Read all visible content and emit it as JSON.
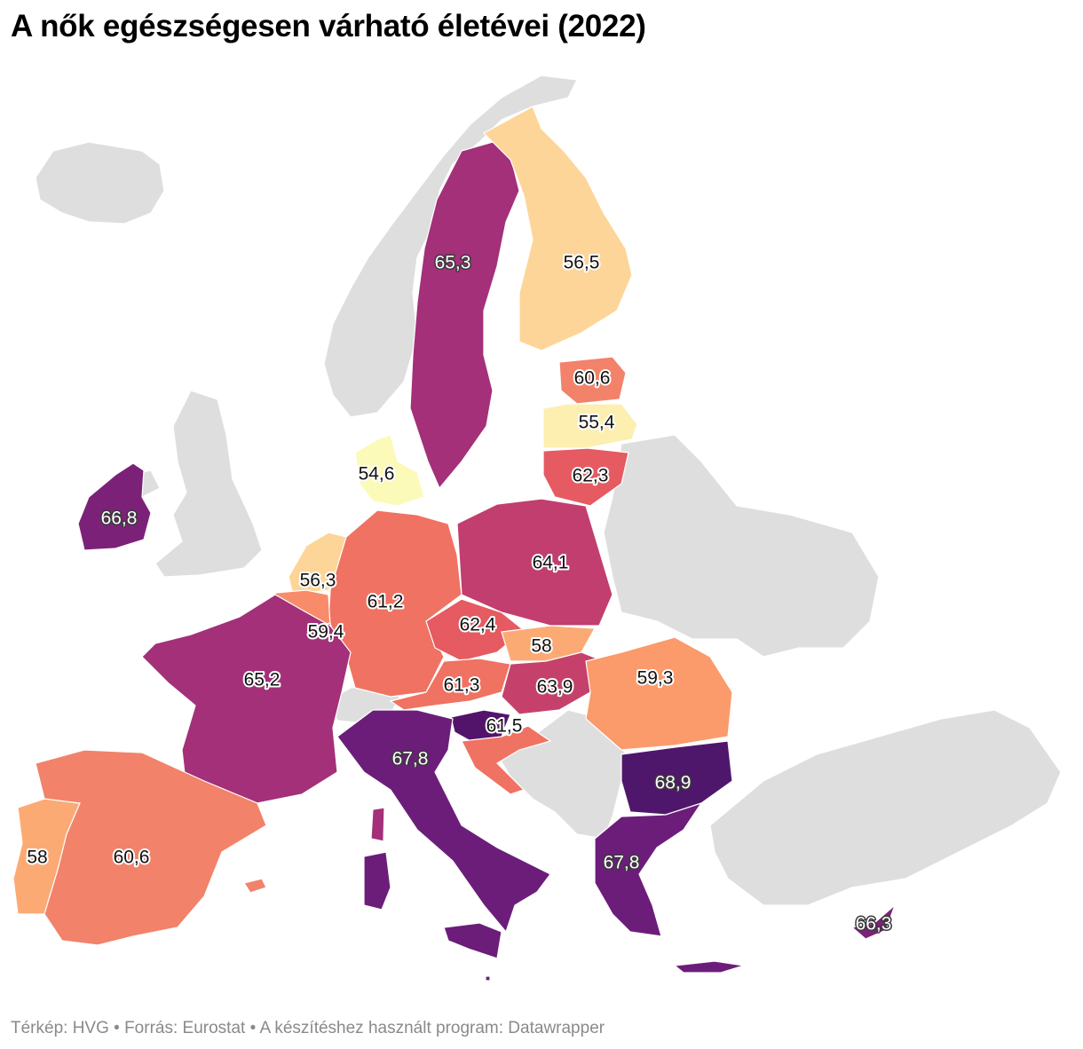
{
  "title": "A nők egészségesen várható életévei (2022)",
  "footer": "Térkép: HVG • Forrás: Eurostat • A készítéshez használt program: Datawrapper",
  "legend_colors": {
    "low": "#fcf7b5",
    "mid_low": "#fdd598",
    "mid": "#f2826a",
    "mid_high": "#c1416d",
    "high": "#6c1d7a",
    "highest": "#4f176b",
    "no_data": "#dedede"
  },
  "countries": {
    "sweden": {
      "name": "Svédország",
      "value": "65,3",
      "color": "#a33079"
    },
    "finland": {
      "name": "Finnország",
      "value": "56,5",
      "color": "#fdd598"
    },
    "estonia": {
      "name": "Észtország",
      "value": "60,6",
      "color": "#f2826a"
    },
    "latvia": {
      "name": "Lettország",
      "value": "55,4",
      "color": "#fcefb0"
    },
    "lithuania": {
      "name": "Litvánia",
      "value": "62,3",
      "color": "#e65a62"
    },
    "denmark": {
      "name": "Dánia",
      "value": "54,6",
      "color": "#fcfab8"
    },
    "ireland": {
      "name": "Írország",
      "value": "66,8",
      "color": "#7c2178"
    },
    "netherlands": {
      "name": "Hollandia",
      "value": "56,3",
      "color": "#fdd598"
    },
    "germany": {
      "name": "Németország",
      "value": "61,2",
      "color": "#f07262"
    },
    "poland": {
      "name": "Lengyelország",
      "value": "64,1",
      "color": "#c13e6f"
    },
    "belgium": {
      "name": "Belgium",
      "value": "59,4",
      "color": "#f88c6a"
    },
    "czechia": {
      "name": "Csehország",
      "value": "62,4",
      "color": "#e65a62"
    },
    "slovakia": {
      "name": "Szlovákia",
      "value": "58",
      "color": "#fcaa74"
    },
    "austria": {
      "name": "Ausztria",
      "value": "61,3",
      "color": "#f07262"
    },
    "hungary": {
      "name": "Magyarország",
      "value": "63,9",
      "color": "#c5416c"
    },
    "romania": {
      "name": "Románia",
      "value": "59,3",
      "color": "#fb9a6b"
    },
    "france": {
      "name": "Franciaország",
      "value": "65,2",
      "color": "#a33079"
    },
    "slovenia": {
      "name": "Szlovénia",
      "value": "61,5",
      "color": "#52146b"
    },
    "croatia": {
      "name": "Horvátország",
      "value": "",
      "color": "#f07262"
    },
    "italy": {
      "name": "Olaszország",
      "value": "67,8",
      "color": "#6c1d7a"
    },
    "bulgaria": {
      "name": "Bulgária",
      "value": "68,9",
      "color": "#4f176b"
    },
    "greece": {
      "name": "Görögország",
      "value": "67,8",
      "color": "#6c1d7a"
    },
    "portugal": {
      "name": "Portugália",
      "value": "58",
      "color": "#fcaa74"
    },
    "spain": {
      "name": "Spanyolország",
      "value": "60,6",
      "color": "#f2826a"
    },
    "cyprus": {
      "name": "Ciprus",
      "value": "66,3",
      "color": "#7c2178"
    },
    "malta": {
      "name": "Málta",
      "value": "",
      "color": "#6c1d7a"
    },
    "luxembourg": {
      "name": "Luxemburg",
      "value": "",
      "color": "#c1416d"
    }
  }
}
